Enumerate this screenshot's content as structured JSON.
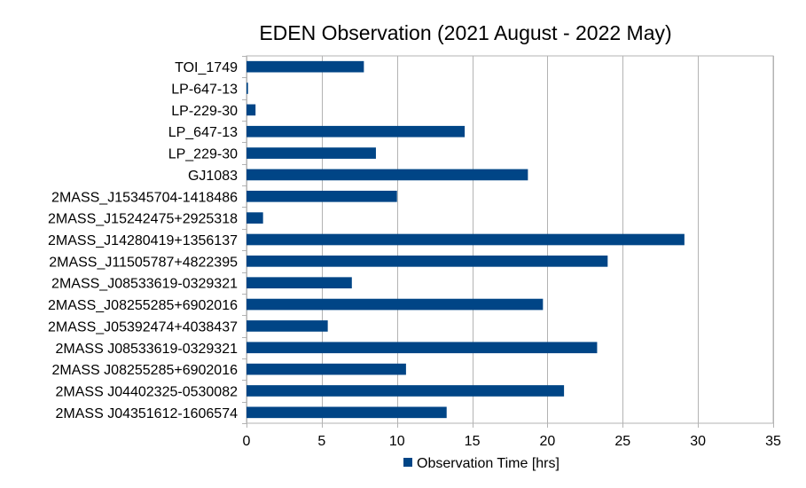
{
  "chart_data": {
    "type": "bar",
    "orientation": "horizontal",
    "title": "EDEN Observation (2021 August - 2022 May)",
    "xlabel": "",
    "ylabel": "",
    "xlim": [
      0,
      35
    ],
    "xticks": [
      0,
      5,
      10,
      15,
      20,
      25,
      30,
      35
    ],
    "grid": true,
    "legend": "bottom",
    "categories": [
      "TOI_1749",
      "LP-647-13",
      "LP-229-30",
      "LP_647-13",
      "LP_229-30",
      "GJ1083",
      "2MASS_J15345704-1418486",
      "2MASS_J15242475+2925318",
      "2MASS_J14280419+1356137",
      "2MASS_J11505787+4822395",
      "2MASS_J08533619-0329321",
      "2MASS_J08255285+6902016",
      "2MASS_J05392474+4038437",
      "2MASS J08533619-0329321",
      "2MASS J08255285+6902016",
      "2MASS J04402325-0530082",
      "2MASS J04351612-1606574"
    ],
    "series": [
      {
        "name": "Observation Time [hrs]",
        "color": "#004586",
        "values": [
          7.8,
          0.1,
          0.6,
          14.5,
          8.6,
          18.7,
          10.0,
          1.1,
          29.1,
          24.0,
          7.0,
          19.7,
          5.4,
          23.3,
          10.6,
          21.1,
          13.3
        ]
      }
    ]
  }
}
